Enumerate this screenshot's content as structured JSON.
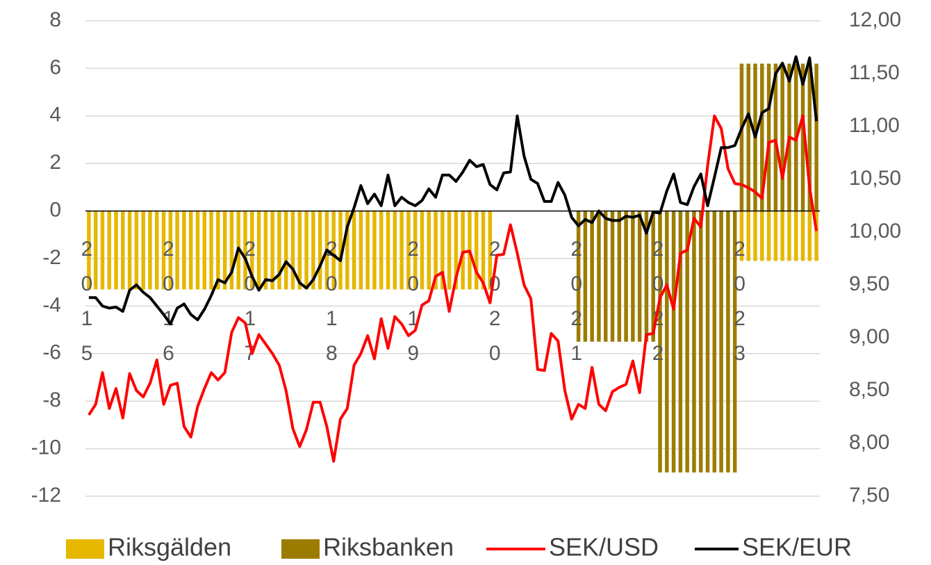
{
  "chart_data": {
    "type": "bar",
    "categories": [
      "2015",
      null,
      null,
      null,
      null,
      null,
      null,
      null,
      null,
      null,
      null,
      null,
      "2016",
      null,
      null,
      null,
      null,
      null,
      null,
      null,
      null,
      null,
      null,
      null,
      "2017",
      null,
      null,
      null,
      null,
      null,
      null,
      null,
      null,
      null,
      null,
      null,
      "2018",
      null,
      null,
      null,
      null,
      null,
      null,
      null,
      null,
      null,
      null,
      null,
      "2019",
      null,
      null,
      null,
      null,
      null,
      null,
      null,
      null,
      null,
      null,
      null,
      "2020",
      null,
      null,
      null,
      null,
      null,
      null,
      null,
      null,
      null,
      null,
      null,
      "2021",
      null,
      null,
      null,
      null,
      null,
      null,
      null,
      null,
      null,
      null,
      null,
      "2022",
      null,
      null,
      null,
      null,
      null,
      null,
      null,
      null,
      null,
      null,
      null,
      "2023",
      null,
      null,
      null,
      null,
      null,
      null,
      null,
      null,
      null,
      null,
      null
    ],
    "series": [
      {
        "name": "Riksgälden",
        "type": "bar",
        "color": "#e6b800",
        "values": [
          -3.3,
          -3.3,
          -3.3,
          -3.3,
          -3.3,
          -3.3,
          -3.3,
          -3.3,
          -3.3,
          -3.3,
          -3.3,
          -3.3,
          -3.3,
          -3.3,
          -3.3,
          -3.3,
          -3.3,
          -3.3,
          -3.3,
          -3.3,
          -3.3,
          -3.3,
          -3.3,
          -3.3,
          -3.3,
          -3.3,
          -3.3,
          -3.3,
          -3.3,
          -3.3,
          -3.3,
          -3.3,
          -3.3,
          -3.3,
          -3.3,
          -3.3,
          -3.3,
          -3.3,
          -3.3,
          -3.3,
          -3.3,
          -3.3,
          -3.3,
          -3.3,
          -3.3,
          -3.3,
          -3.3,
          -3.3,
          -3.3,
          -3.3,
          -3.3,
          -3.3,
          -3.3,
          -3.3,
          -3.3,
          -3.3,
          -3.3,
          -3.3,
          -3.3,
          -3.3,
          null,
          null,
          null,
          null,
          null,
          null,
          null,
          null,
          null,
          null,
          null,
          null,
          null,
          null,
          null,
          null,
          null,
          null,
          null,
          null,
          null,
          null,
          null,
          null,
          null,
          null,
          null,
          null,
          null,
          null,
          null,
          null,
          null,
          null,
          null,
          null,
          -2.1,
          -2.1,
          -2.1,
          -2.1,
          -2.1,
          -2.1,
          -2.1,
          -2.1,
          -2.1,
          -2.1,
          -2.1,
          -2.1
        ]
      },
      {
        "name": "Riksbanken",
        "type": "bar",
        "color": "#9c7c00",
        "values": [
          null,
          null,
          null,
          null,
          null,
          null,
          null,
          null,
          null,
          null,
          null,
          null,
          null,
          null,
          null,
          null,
          null,
          null,
          null,
          null,
          null,
          null,
          null,
          null,
          null,
          null,
          null,
          null,
          null,
          null,
          null,
          null,
          null,
          null,
          null,
          null,
          null,
          null,
          null,
          null,
          null,
          null,
          null,
          null,
          null,
          null,
          null,
          null,
          null,
          null,
          null,
          null,
          null,
          null,
          null,
          null,
          null,
          null,
          null,
          null,
          null,
          null,
          null,
          null,
          null,
          null,
          null,
          null,
          null,
          null,
          null,
          null,
          -5.5,
          -5.5,
          -5.5,
          -5.5,
          -5.5,
          -5.5,
          -5.5,
          -5.5,
          -5.5,
          -5.5,
          -5.5,
          -5.5,
          -11,
          -11,
          -11,
          -11,
          -11,
          -11,
          -11,
          -11,
          -11,
          -11,
          -11,
          -11,
          6.2,
          6.2,
          6.2,
          6.2,
          6.2,
          6.2,
          6.2,
          6.2,
          6.2,
          6.2,
          6.2,
          6.2
        ]
      },
      {
        "name": "SEK/USD",
        "type": "line",
        "axis": "y2",
        "color": "#ff0000",
        "values": [
          8.27,
          8.37,
          8.67,
          8.33,
          8.52,
          8.24,
          8.66,
          8.5,
          8.44,
          8.57,
          8.79,
          8.37,
          8.55,
          8.57,
          8.16,
          8.06,
          8.35,
          8.52,
          8.67,
          8.6,
          8.67,
          9.05,
          9.19,
          9.14,
          8.85,
          9.03,
          8.94,
          8.85,
          8.74,
          8.5,
          8.14,
          7.97,
          8.13,
          8.39,
          8.39,
          8.16,
          7.83,
          8.23,
          8.33,
          8.74,
          8.85,
          9.02,
          8.8,
          9.18,
          8.9,
          9.2,
          9.13,
          9.02,
          9.07,
          9.31,
          9.35,
          9.58,
          9.62,
          9.25,
          9.57,
          9.81,
          9.82,
          9.62,
          9.52,
          9.33,
          9.78,
          9.79,
          10.07,
          9.8,
          9.5,
          9.37,
          8.7,
          8.69,
          9.04,
          8.97,
          8.5,
          8.23,
          8.37,
          8.33,
          8.72,
          8.37,
          8.31,
          8.49,
          8.53,
          8.56,
          8.78,
          8.48,
          9.03,
          9.04,
          9.38,
          9.5,
          9.27,
          9.8,
          9.83,
          10.13,
          10.05,
          10.63,
          11.1,
          10.98,
          10.6,
          10.46,
          10.45,
          10.42,
          10.38,
          10.32,
          10.85,
          10.87,
          10.51,
          10.9,
          10.87,
          11.1,
          10.42,
          10.01
        ]
      },
      {
        "name": "SEK/EUR",
        "type": "line",
        "axis": "y2",
        "color": "#000000",
        "values": [
          9.38,
          9.38,
          9.3,
          9.28,
          9.29,
          9.25,
          9.45,
          9.5,
          9.43,
          9.38,
          9.3,
          9.22,
          9.13,
          9.28,
          9.32,
          9.22,
          9.17,
          9.27,
          9.4,
          9.55,
          9.52,
          9.62,
          9.85,
          9.75,
          9.58,
          9.45,
          9.55,
          9.54,
          9.6,
          9.72,
          9.65,
          9.52,
          9.47,
          9.55,
          9.68,
          9.83,
          9.78,
          9.73,
          10.05,
          10.23,
          10.44,
          10.27,
          10.36,
          10.25,
          10.54,
          10.25,
          10.33,
          10.28,
          10.25,
          10.3,
          10.41,
          10.33,
          10.54,
          10.54,
          10.48,
          10.57,
          10.68,
          10.62,
          10.64,
          10.45,
          10.4,
          10.56,
          10.57,
          11.1,
          10.72,
          10.5,
          10.46,
          10.29,
          10.29,
          10.47,
          10.35,
          10.14,
          10.06,
          10.12,
          10.09,
          10.2,
          10.13,
          10.11,
          10.11,
          10.15,
          10.14,
          10.16,
          9.99,
          10.19,
          10.18,
          10.39,
          10.55,
          10.28,
          10.26,
          10.43,
          10.55,
          10.25,
          10.52,
          10.8,
          10.8,
          10.82,
          10.98,
          11.12,
          10.9,
          11.13,
          11.17,
          11.5,
          11.6,
          11.43,
          11.66,
          11.4,
          11.65,
          11.05
        ]
      }
    ],
    "ylim": [
      -12,
      8
    ],
    "yticks": [
      -12,
      -10,
      -8,
      -6,
      -4,
      -2,
      0,
      2,
      4,
      6,
      8
    ],
    "y2lim": [
      7.5,
      12
    ],
    "y2ticks": [
      {
        "value": 7.5,
        "label": "7,50"
      },
      {
        "value": 8,
        "label": "8,00"
      },
      {
        "value": 8.5,
        "label": "8,50"
      },
      {
        "value": 9,
        "label": "9,00"
      },
      {
        "value": 9.5,
        "label": "9,50"
      },
      {
        "value": 10,
        "label": "10,00"
      },
      {
        "value": 10.5,
        "label": "10,50"
      },
      {
        "value": 11,
        "label": "11,00"
      },
      {
        "value": 11.5,
        "label": "11,50"
      },
      {
        "value": 12,
        "label": "12,00"
      }
    ],
    "grid": true,
    "legend": "bottom"
  }
}
